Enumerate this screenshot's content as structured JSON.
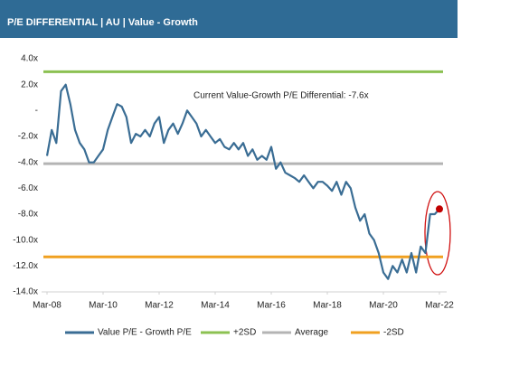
{
  "chart_data": {
    "type": "line",
    "title": "P/E DIFFERENTIAL | AU | Value - Growth",
    "annotation": "Current Value-Growth P/E Differential: -7.6x",
    "x": [
      "Mar-08",
      "May-08",
      "Jul-08",
      "Sep-08",
      "Nov-08",
      "Jan-09",
      "Mar-09",
      "May-09",
      "Jul-09",
      "Sep-09",
      "Nov-09",
      "Jan-10",
      "Mar-10",
      "May-10",
      "Jul-10",
      "Sep-10",
      "Nov-10",
      "Jan-11",
      "Mar-11",
      "May-11",
      "Jul-11",
      "Sep-11",
      "Nov-11",
      "Jan-12",
      "Mar-12",
      "May-12",
      "Jul-12",
      "Sep-12",
      "Nov-12",
      "Jan-13",
      "Mar-13",
      "May-13",
      "Jul-13",
      "Sep-13",
      "Nov-13",
      "Jan-14",
      "Mar-14",
      "May-14",
      "Jul-14",
      "Sep-14",
      "Nov-14",
      "Jan-15",
      "Mar-15",
      "May-15",
      "Jul-15",
      "Sep-15",
      "Nov-15",
      "Jan-16",
      "Mar-16",
      "May-16",
      "Jul-16",
      "Sep-16",
      "Nov-16",
      "Jan-17",
      "Mar-17",
      "May-17",
      "Jul-17",
      "Sep-17",
      "Nov-17",
      "Jan-18",
      "Mar-18",
      "May-18",
      "Jul-18",
      "Sep-18",
      "Nov-18",
      "Jan-19",
      "Mar-19",
      "May-19",
      "Jul-19",
      "Sep-19",
      "Nov-19",
      "Jan-20",
      "Mar-20",
      "May-20",
      "Jul-20",
      "Sep-20",
      "Nov-20",
      "Jan-21",
      "Mar-21",
      "May-21",
      "Jul-21",
      "Sep-21",
      "Nov-21",
      "Jan-22",
      "Mar-22"
    ],
    "series": [
      {
        "name": "Value P/E - Growth P/E",
        "color": "#3a6d94",
        "values": [
          -3.5,
          -1.5,
          -2.5,
          1.5,
          2.0,
          0.5,
          -1.5,
          -2.5,
          -3.0,
          -4.0,
          -4.0,
          -3.5,
          -3.0,
          -1.5,
          -0.5,
          0.5,
          0.3,
          -0.5,
          -2.5,
          -1.8,
          -2.0,
          -1.5,
          -2.0,
          -1.0,
          -0.5,
          -2.5,
          -1.5,
          -1.0,
          -1.8,
          -1.0,
          0.0,
          -0.5,
          -1.0,
          -2.0,
          -1.5,
          -2.0,
          -2.5,
          -2.2,
          -2.8,
          -3.0,
          -2.5,
          -3.0,
          -2.5,
          -3.5,
          -3.0,
          -3.8,
          -3.5,
          -3.8,
          -2.8,
          -4.5,
          -4.0,
          -4.8,
          -5.0,
          -5.2,
          -5.5,
          -5.0,
          -5.5,
          -6.0,
          -5.5,
          -5.5,
          -5.8,
          -6.2,
          -5.5,
          -6.5,
          -5.5,
          -6.0,
          -7.5,
          -8.5,
          -8.0,
          -9.5,
          -10.0,
          -11.0,
          -12.5,
          -13.0,
          -12.0,
          -12.5,
          -11.5,
          -12.5,
          -11.0,
          -12.5,
          -10.5,
          -11.0,
          -8.0,
          -8.0,
          -7.6
        ]
      }
    ],
    "reference_lines": [
      {
        "name": "+2SD",
        "value": 3.0,
        "color": "#8cc152"
      },
      {
        "name": "Average",
        "value": -4.1,
        "color": "#b4b4b4"
      },
      {
        "name": "-2SD",
        "value": -11.3,
        "color": "#f0a020"
      }
    ],
    "end_marker_color": "#c00000",
    "xlim": [
      "Mar-08",
      "Mar-22"
    ],
    "xticks": [
      "Mar-08",
      "Mar-10",
      "Mar-12",
      "Mar-14",
      "Mar-16",
      "Mar-18",
      "Mar-20",
      "Mar-22"
    ],
    "ylim": [
      -14,
      4
    ],
    "yticks": [
      {
        "value": 4,
        "label": "4.0x"
      },
      {
        "value": 2,
        "label": "2.0x"
      },
      {
        "value": 0,
        "label": "-"
      },
      {
        "value": -2,
        "label": "-2.0x"
      },
      {
        "value": -4,
        "label": "-4.0x"
      },
      {
        "value": -6,
        "label": "-6.0x"
      },
      {
        "value": -8,
        "label": "-8.0x"
      },
      {
        "value": -10,
        "label": "-10.0x"
      },
      {
        "value": -12,
        "label": "-12.0x"
      },
      {
        "value": -14,
        "label": "-14.0x"
      }
    ],
    "grid": false,
    "legend": "bottom"
  }
}
